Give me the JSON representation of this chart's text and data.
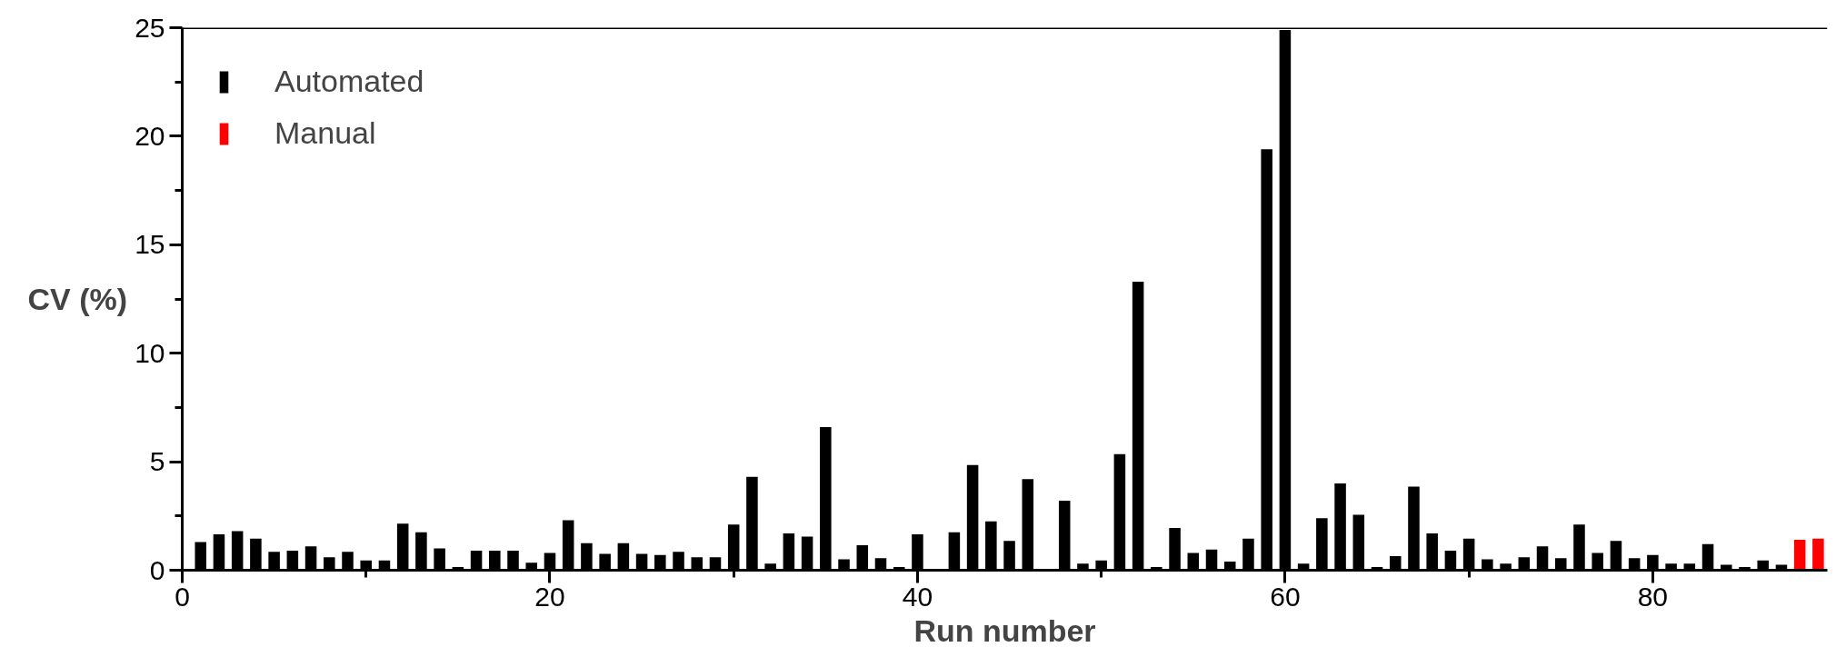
{
  "chart_data": {
    "type": "bar",
    "xlabel": "Run number",
    "ylabel": "CV (%)",
    "xlim": [
      0,
      89.5
    ],
    "xticks": [
      0,
      {
        "value": 10,
        "label": null
      },
      20,
      {
        "value": 30,
        "label": null
      },
      40,
      {
        "value": 50,
        "label": null
      },
      60,
      {
        "value": 70,
        "label": null
      },
      80
    ],
    "ylim": [
      0,
      25
    ],
    "yticks": [
      0,
      {
        "value": 2.5,
        "label": null
      },
      5,
      {
        "value": 7.5,
        "label": null
      },
      10,
      {
        "value": 12.5,
        "label": null
      },
      15,
      {
        "value": 17.5,
        "label": null
      },
      20,
      {
        "value": 22.5,
        "label": null
      },
      25
    ],
    "grid": false,
    "legend": "top left",
    "series": [
      {
        "name": "Automated",
        "color": "#000000",
        "x": [
          1,
          2,
          3,
          4,
          5,
          6,
          7,
          8,
          9,
          10,
          11,
          12,
          13,
          14,
          15,
          16,
          17,
          18,
          19,
          20,
          21,
          22,
          23,
          24,
          25,
          26,
          27,
          28,
          29,
          30,
          31,
          32,
          33,
          34,
          35,
          36,
          37,
          38,
          39,
          40,
          41,
          42,
          43,
          44,
          45,
          46,
          47,
          48,
          49,
          50,
          51,
          52,
          53,
          54,
          55,
          56,
          57,
          58,
          59,
          60,
          61,
          62,
          63,
          64,
          65,
          66,
          67,
          68,
          69,
          70,
          71,
          72,
          73,
          74,
          75,
          76,
          77,
          78,
          79,
          80,
          81,
          82,
          83,
          84,
          85,
          86,
          87
        ],
        "values": [
          1.3,
          1.65,
          1.8,
          1.45,
          0.85,
          0.9,
          1.1,
          0.6,
          0.85,
          0.45,
          0.45,
          2.15,
          1.75,
          1.0,
          0.15,
          0.9,
          0.9,
          0.9,
          0.35,
          0.8,
          2.3,
          1.25,
          0.75,
          1.25,
          0.75,
          0.7,
          0.85,
          0.6,
          0.6,
          2.1,
          4.3,
          0.3,
          1.7,
          1.55,
          6.6,
          0.5,
          1.15,
          0.55,
          0.15,
          1.65,
          0,
          1.75,
          4.85,
          2.25,
          1.35,
          4.2,
          0,
          3.2,
          0.3,
          0.45,
          5.35,
          13.3,
          0.15,
          1.95,
          0.8,
          0.95,
          0.4,
          1.45,
          19.4,
          24.9,
          0.3,
          2.4,
          4.0,
          2.55,
          0.15,
          0.65,
          3.85,
          1.7,
          0.9,
          1.45,
          0.5,
          0.3,
          0.6,
          1.1,
          0.55,
          2.1,
          0.8,
          1.35,
          0.55,
          0.7,
          0.3,
          0.3,
          1.2,
          0.25,
          0.15,
          0.45,
          0.25
        ]
      },
      {
        "name": "Manual",
        "color": "#ff0000",
        "x": [
          88,
          89
        ],
        "values": [
          1.4,
          1.45
        ]
      }
    ]
  }
}
